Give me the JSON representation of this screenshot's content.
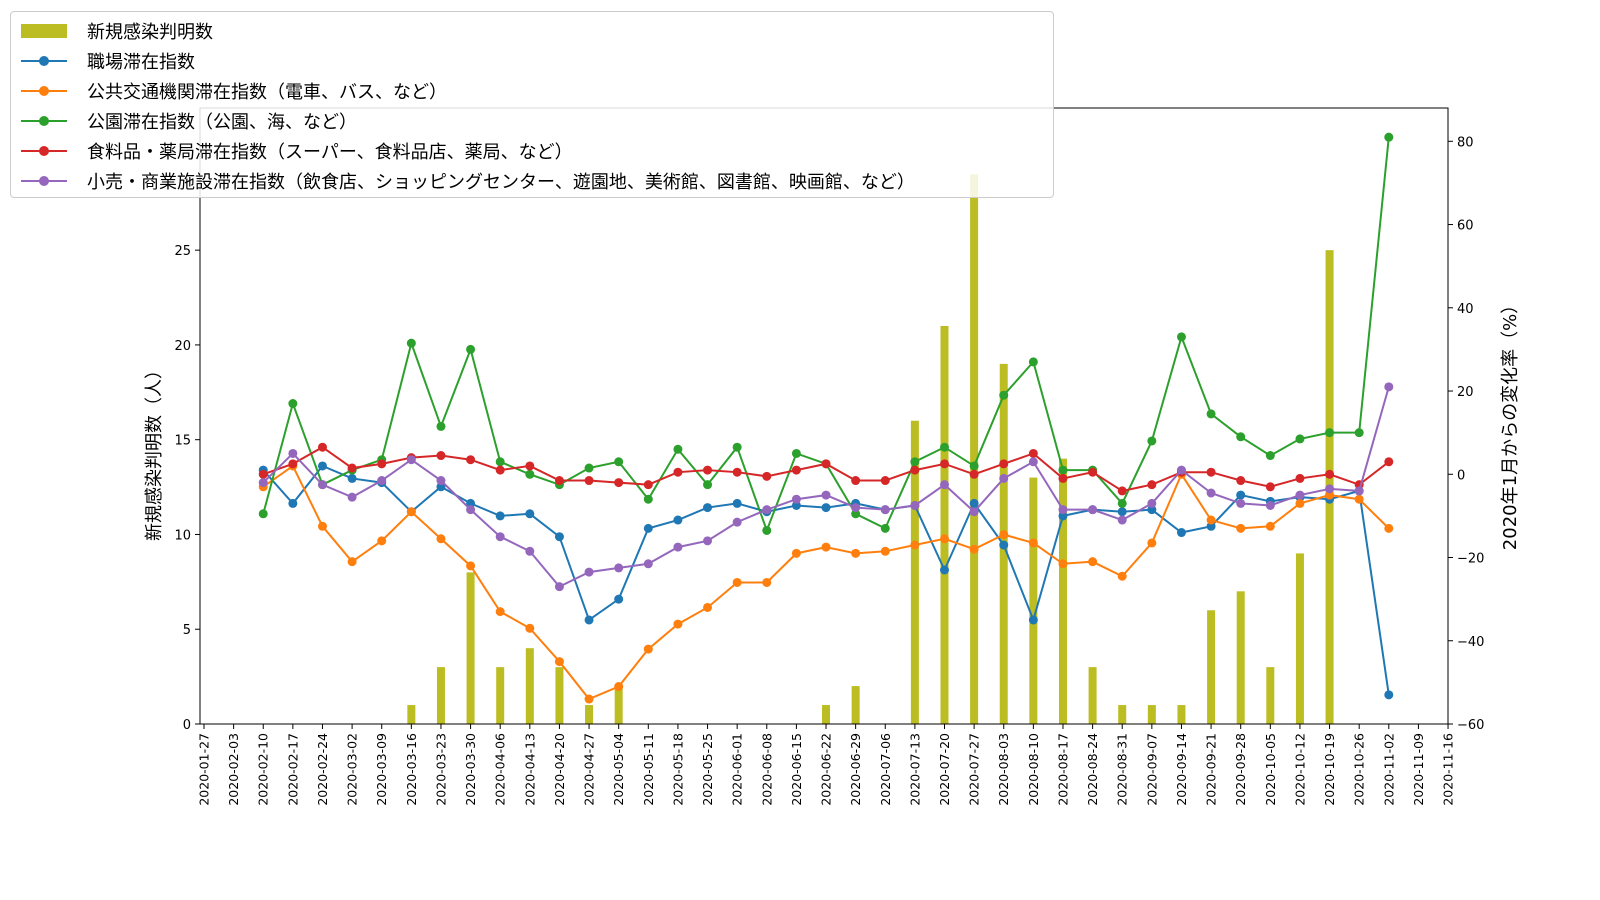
{
  "chart_data": {
    "type": "bar+line",
    "title": "",
    "x_ticks": [
      "2020-01-27",
      "2020-02-03",
      "2020-02-10",
      "2020-02-17",
      "2020-02-24",
      "2020-03-02",
      "2020-03-09",
      "2020-03-16",
      "2020-03-23",
      "2020-03-30",
      "2020-04-06",
      "2020-04-13",
      "2020-04-20",
      "2020-04-27",
      "2020-05-04",
      "2020-05-11",
      "2020-05-18",
      "2020-05-25",
      "2020-06-01",
      "2020-06-08",
      "2020-06-15",
      "2020-06-22",
      "2020-06-29",
      "2020-07-06",
      "2020-07-13",
      "2020-07-20",
      "2020-07-27",
      "2020-08-03",
      "2020-08-10",
      "2020-08-17",
      "2020-08-24",
      "2020-08-31",
      "2020-09-07",
      "2020-09-14",
      "2020-09-21",
      "2020-09-28",
      "2020-10-05",
      "2020-10-12",
      "2020-10-19",
      "2020-10-26",
      "2020-11-02",
      "2020-11-09",
      "2020-11-16"
    ],
    "y_left": {
      "label": "新規感染判明数（人）",
      "lim": [
        0,
        32.5
      ],
      "ticks": [
        0,
        5,
        10,
        15,
        20,
        25
      ]
    },
    "y_right": {
      "label": "2020年1月からの変化率（%）",
      "lim": [
        -60,
        88
      ],
      "ticks": [
        -60,
        -40,
        -20,
        0,
        20,
        40,
        60,
        80
      ]
    },
    "bars": {
      "name": "新規感染判明数",
      "color": "#bcbd22",
      "values": [
        0,
        0,
        0,
        0,
        0,
        0,
        0,
        1,
        3,
        8,
        3,
        4,
        3,
        1,
        2,
        0,
        0,
        0,
        0,
        0,
        0,
        1,
        2,
        0,
        16,
        21,
        29,
        19,
        13,
        14,
        3,
        1,
        1,
        1,
        6,
        7,
        3,
        9,
        25,
        0,
        0,
        0,
        0
      ]
    },
    "series": [
      {
        "name": "職場滞在指数",
        "color": "#1f77b4",
        "values": [
          null,
          null,
          1,
          -7,
          2,
          -1,
          -2,
          -9,
          -3,
          -7,
          -10,
          -9.5,
          -15,
          -35,
          -30,
          -13,
          -11,
          -8,
          -7,
          -9,
          -7.5,
          -8,
          -7,
          -8.5,
          -7.5,
          -23,
          -7,
          -17,
          -35,
          -10,
          -8.5,
          -9,
          -8.5,
          -14,
          -12.5,
          -5,
          -6.5,
          -5.5,
          -6,
          -4,
          -53,
          null,
          null
        ]
      },
      {
        "name": "公共交通機関滞在指数（電車、バス、など）",
        "color": "#ff7f0e",
        "values": [
          null,
          null,
          -3,
          2,
          -12.5,
          -21,
          -16,
          -9,
          -15.5,
          -22,
          -33,
          -37,
          -45,
          -54,
          -51,
          -42,
          -36,
          -32,
          -26,
          -26,
          -19,
          -17.5,
          -19,
          -18.5,
          -17,
          -15.5,
          -18,
          -14.5,
          -16.5,
          -21.5,
          -21,
          -24.5,
          -16.5,
          0,
          -11,
          -13,
          -12.5,
          -7,
          -5,
          -6,
          -13,
          null,
          null
        ]
      },
      {
        "name": "公園滞在指数（公園、海、など）",
        "color": "#2ca02c",
        "values": [
          null,
          null,
          -9.5,
          17,
          -2.5,
          1,
          3.5,
          31.5,
          11.5,
          30,
          3,
          0,
          -2.5,
          1.5,
          3,
          -6,
          6,
          -2.5,
          6.5,
          -13.5,
          5,
          2.5,
          -9.5,
          -13,
          3,
          6.5,
          2,
          19,
          27,
          1,
          1,
          -7,
          8,
          33,
          14.5,
          9,
          4.5,
          8.5,
          10,
          10,
          81,
          null,
          null
        ]
      },
      {
        "name": "食料品・薬局滞在指数（スーパー、食料品店、薬局、など）",
        "color": "#d62728",
        "values": [
          null,
          null,
          0,
          2.5,
          6.5,
          1.5,
          2.5,
          4,
          4.5,
          3.5,
          1,
          2,
          -1.5,
          -1.5,
          -2,
          -2.5,
          0.5,
          1,
          0.5,
          -0.5,
          1,
          2.5,
          -1.5,
          -1.5,
          1,
          2.5,
          0,
          2.5,
          5,
          -1,
          0.5,
          -4,
          -2.5,
          0.5,
          0.5,
          -1.5,
          -3,
          -1,
          0,
          -2.5,
          3,
          null,
          null
        ]
      },
      {
        "name": "小売・商業施設滞在指数（飲食店、ショッピングセンター、遊園地、美術館、図書館、映画館、など）",
        "color": "#9467bd",
        "values": [
          null,
          null,
          -2,
          5,
          -2.5,
          -5.5,
          -1.5,
          3.5,
          -1.5,
          -8.5,
          -15,
          -18.5,
          -27,
          -23.5,
          -22.5,
          -21.5,
          -17.5,
          -16,
          -11.5,
          -8.5,
          -6,
          -5,
          -8,
          -8.5,
          -7.5,
          -2.5,
          -9,
          -1,
          3,
          -8.5,
          -8.5,
          -11,
          -7,
          1,
          -4.5,
          -7,
          -7.5,
          -5,
          -3.5,
          -4,
          21,
          null,
          null
        ]
      }
    ],
    "legend": {
      "placement": "top-left",
      "entries": [
        "新規感染判明数",
        "職場滞在指数",
        "公共交通機関滞在指数（電車、バス、など）",
        "公園滞在指数（公園、海、など）",
        "食料品・薬局滞在指数（スーパー、食料品店、薬局、など）",
        "小売・商業施設滞在指数（飲食店、ショッピングセンター、遊園地、美術館、図書館、映画館、など）"
      ]
    },
    "grid": false
  }
}
